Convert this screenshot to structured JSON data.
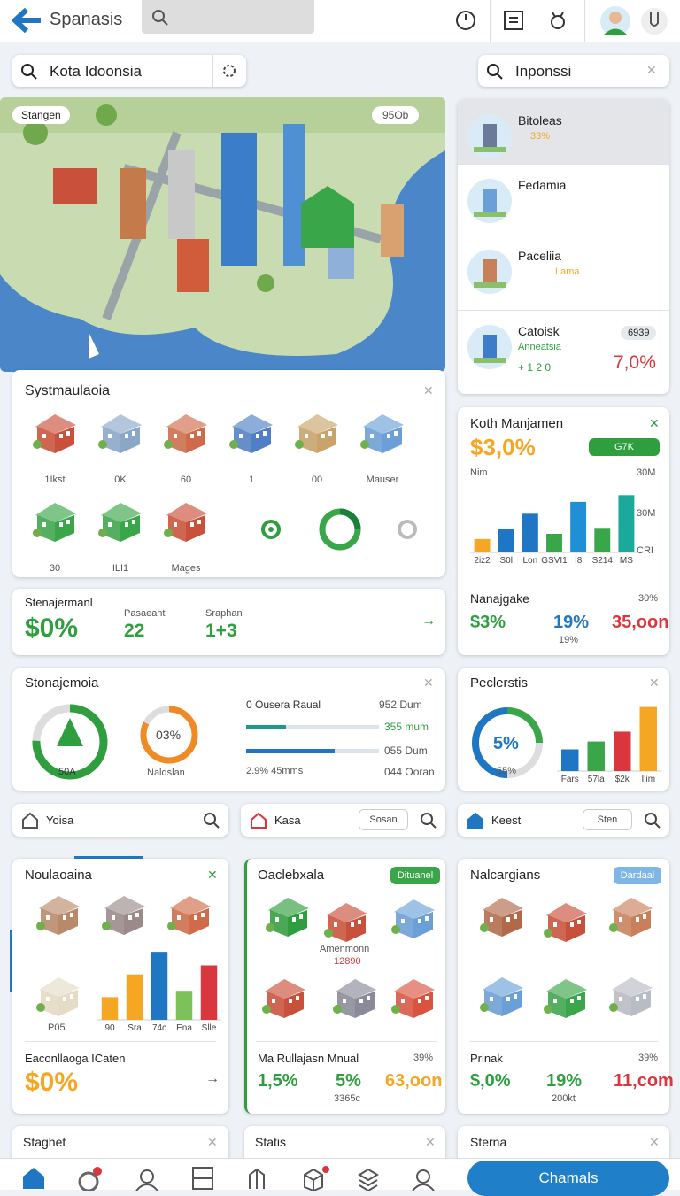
{
  "header": {
    "title": "Spanasis"
  },
  "search": {
    "left": "Kota Idoonsia",
    "right": "Inponssi"
  },
  "map": {
    "tag": "Stangen",
    "badge": "95Ob"
  },
  "places": [
    {
      "name": "Bitoleas",
      "meta": "33%"
    },
    {
      "name": "Fedamia"
    },
    {
      "name": "Paceliia",
      "meta": "Lama"
    },
    {
      "name": "Catoisk",
      "meta": "Anneatsia",
      "rating": "+ 1 2 0",
      "badge": "6939",
      "value": "7,0%"
    }
  ],
  "systm": {
    "title": "Systmaulaoia",
    "labels": [
      "1Ikst",
      "0K",
      "60",
      "1",
      "00",
      "Mauser",
      "30",
      "ILI1",
      "Mages"
    ]
  },
  "stenajermanl": {
    "title": "Stenajermanl",
    "value": "$0%",
    "stats": [
      {
        "label": "Pasaeant",
        "value": "22"
      },
      {
        "label": "Sraphan",
        "value": "1+3"
      }
    ]
  },
  "koth": {
    "title": "Koth Manjamen",
    "value": "$3,0%",
    "badge": "G7K",
    "axis_labels": [
      "Nim",
      "30M",
      "30M",
      "CRI"
    ],
    "chart": {
      "type": "bar",
      "categories": [
        "2iz2",
        "S0l",
        "Lon",
        "GSVI1",
        "I8",
        "S214",
        "MS"
      ],
      "values": [
        18,
        32,
        52,
        25,
        68,
        33,
        77
      ],
      "colors": [
        "#f5a623",
        "#1f77c4",
        "#1f77c4",
        "#3aa64a",
        "#1f8fd6",
        "#3aa64a",
        "#1aa99a"
      ],
      "ylim": [
        0,
        100
      ]
    }
  },
  "nanajgake": {
    "title": "Nanajgake",
    "note": "30%",
    "values": [
      "$3%",
      "19%",
      "35,oon"
    ],
    "sub": "19%"
  },
  "stonajemoia": {
    "title": "Stonajemoia",
    "ring1": "50A",
    "ring2": "03%",
    "ring2_label": "Naldslan",
    "rows_left": [
      "0 Ousera Raual",
      "2.9% 45mms"
    ],
    "rows_right": [
      "952 Dum",
      "355 mum",
      "055 Dum",
      "044 Ooran"
    ]
  },
  "peclerstis": {
    "title": "Peclerstis",
    "ring": "5%",
    "ring_sub": "55%",
    "chart": {
      "type": "bar",
      "categories": [
        "Fars",
        "57la",
        "$2k",
        "Ilim"
      ],
      "values": [
        22,
        30,
        40,
        65
      ],
      "colors": [
        "#1f77c4",
        "#3aa64a",
        "#d9363e",
        "#f5a623"
      ],
      "ylim": [
        0,
        70
      ]
    }
  },
  "tabs": [
    {
      "label": "Yoisa"
    },
    {
      "label": "Kasa",
      "button": "Sosan"
    },
    {
      "label": "Keest",
      "button": "Sten"
    }
  ],
  "cards": [
    {
      "title": "Noulaoaina",
      "building_label": "P05",
      "chart": {
        "type": "bar",
        "categories": [
          "90",
          "Sra",
          "74c",
          "Ena",
          "Slle"
        ],
        "values": [
          25,
          50,
          75,
          32,
          60
        ],
        "colors": [
          "#f5a623",
          "#f5a623",
          "#1f77c4",
          "#7cc15a",
          "#d9363e"
        ],
        "ylim": [
          0,
          80
        ]
      },
      "footer_title": "Eaconllaoga ICaten",
      "footer_value": "$0%"
    },
    {
      "title": "Oaclebxala",
      "badge": "Dituanel",
      "caption": "Amenmonn",
      "caption_sub": "12890",
      "footer_title": "Ma Rullajasn Mnual",
      "note": "39%",
      "values": [
        "1,5%",
        "5%",
        "63,oon"
      ],
      "sub": "3365c"
    },
    {
      "title": "Nalcargians",
      "badge": "Dardaal",
      "footer_title": "Prinak",
      "note": "39%",
      "values": [
        "$,0%",
        "19%",
        "11,com"
      ],
      "sub": "200kt"
    }
  ],
  "bottom_cards": [
    "Staghet",
    "Statis",
    "Sterna"
  ],
  "nav": {
    "button": "Chamals"
  }
}
